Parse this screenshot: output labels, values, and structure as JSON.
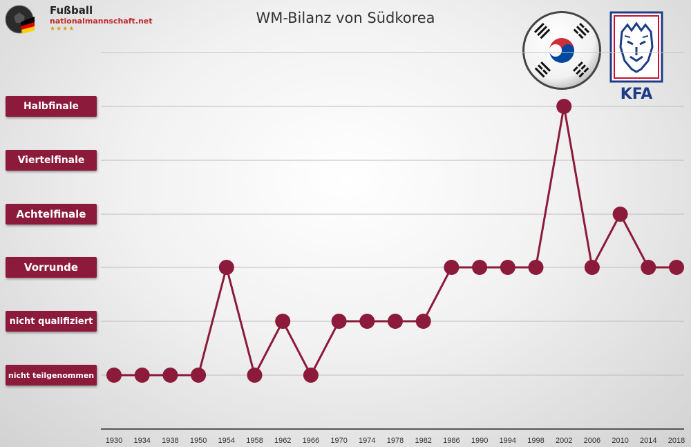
{
  "logo": {
    "line1": "Fußball",
    "line2": "nationalmannschaft.net",
    "stars": "★★★★"
  },
  "flag_icon": "south-korea-flag-icon",
  "kfa": {
    "text": "KFA",
    "icon": "kfa-tiger-crest-icon"
  },
  "colors": {
    "series": "#8b1a3b",
    "label_bg": "#8b1a3b",
    "kfa_blue": "#1d3c87",
    "kfa_red": "#c8102e",
    "flag_red": "#cd2e3a",
    "flag_blue": "#0047a0"
  },
  "chart_data": {
    "type": "line",
    "title": "WM-Bilanz von Südkorea",
    "levels": [
      "nicht teilgenommen",
      "nicht qualifiziert",
      "Vorrunde",
      "Achtelfinale",
      "Viertelfinale",
      "Halbfinale"
    ],
    "categories": [
      "1930",
      "1934",
      "1938",
      "1950",
      "1954",
      "1958",
      "1962",
      "1966",
      "1970",
      "1974",
      "1978",
      "1982",
      "1986",
      "1990",
      "1994",
      "1998",
      "2002",
      "2006",
      "2010",
      "2014",
      "2018"
    ],
    "values": [
      0,
      0,
      0,
      0,
      2,
      0,
      1,
      0,
      1,
      1,
      1,
      1,
      2,
      2,
      2,
      2,
      5,
      2,
      3,
      2,
      2
    ],
    "value_labels": [
      "nicht teilgenommen",
      "nicht teilgenommen",
      "nicht teilgenommen",
      "nicht teilgenommen",
      "Vorrunde",
      "nicht teilgenommen",
      "nicht qualifiziert",
      "nicht teilgenommen",
      "nicht qualifiziert",
      "nicht qualifiziert",
      "nicht qualifiziert",
      "nicht qualifiziert",
      "Vorrunde",
      "Vorrunde",
      "Vorrunde",
      "Vorrunde",
      "Halbfinale",
      "Vorrunde",
      "Achtelfinale",
      "Vorrunde",
      "Vorrunde"
    ],
    "grid": true,
    "legend": "none"
  }
}
